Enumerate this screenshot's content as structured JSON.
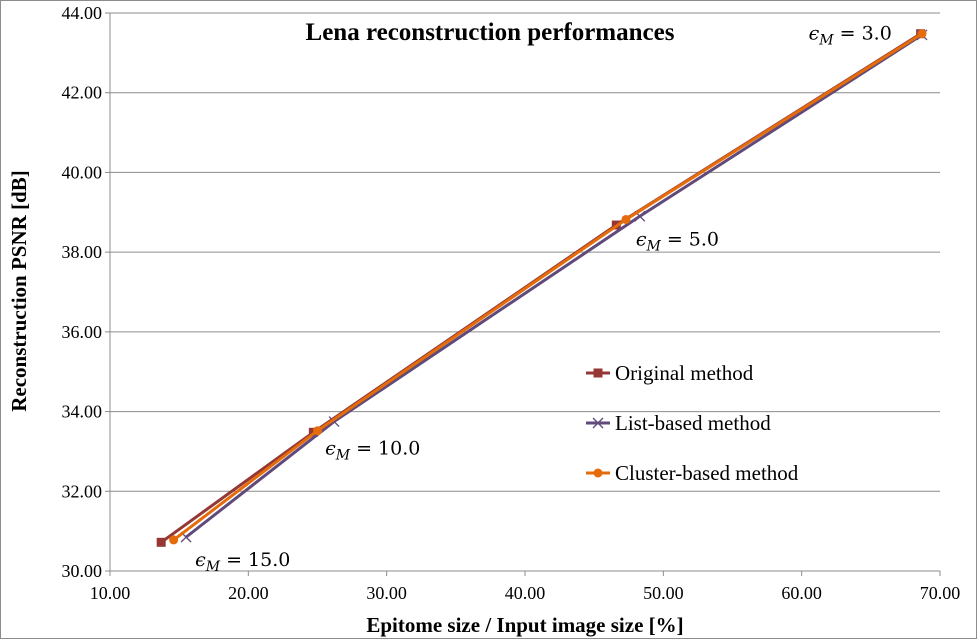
{
  "chart_data": {
    "type": "line",
    "title": "Lena reconstruction performances",
    "xlabel": "Epitome size / Input image size [%]",
    "ylabel": "Reconstruction PSNR [dB]",
    "xlim": [
      10,
      70
    ],
    "ylim": [
      30,
      44
    ],
    "x_ticks": [
      "10.00",
      "20.00",
      "30.00",
      "40.00",
      "50.00",
      "60.00",
      "70.00"
    ],
    "y_ticks": [
      "30.00",
      "32.00",
      "34.00",
      "36.00",
      "38.00",
      "40.00",
      "42.00",
      "44.00"
    ],
    "grid": "horizontal",
    "legend_position": "right-center",
    "series": [
      {
        "name": "Original method",
        "color": "#953735",
        "marker": "square",
        "points": [
          {
            "x": 13.7,
            "y": 30.72
          },
          {
            "x": 24.7,
            "y": 33.48
          },
          {
            "x": 46.6,
            "y": 38.68
          },
          {
            "x": 68.6,
            "y": 43.48
          }
        ]
      },
      {
        "name": "List-based method",
        "color": "#604a7b",
        "marker": "x",
        "points": [
          {
            "x": 15.5,
            "y": 30.85
          },
          {
            "x": 26.2,
            "y": 33.75
          },
          {
            "x": 48.3,
            "y": 38.9
          },
          {
            "x": 68.7,
            "y": 43.45
          }
        ]
      },
      {
        "name": "Cluster-based method",
        "color": "#e46c0a",
        "marker": "circle",
        "points": [
          {
            "x": 14.6,
            "y": 30.78
          },
          {
            "x": 25.0,
            "y": 33.52
          },
          {
            "x": 47.3,
            "y": 38.82
          },
          {
            "x": 68.7,
            "y": 43.48
          }
        ]
      }
    ],
    "annotations": [
      {
        "symbol": "ϵ",
        "sub": "M",
        "value": "= 3.0",
        "x": 68.6,
        "y": 43.48
      },
      {
        "symbol": "ϵ",
        "sub": "M",
        "value": "= 5.0",
        "x": 48.3,
        "y": 38.9
      },
      {
        "symbol": "ϵ",
        "sub": "M",
        "value": "= 10.0",
        "x": 26.2,
        "y": 33.75
      },
      {
        "symbol": "ϵ",
        "sub": "M",
        "value": "= 15.0",
        "x": 15.5,
        "y": 30.85
      }
    ]
  }
}
